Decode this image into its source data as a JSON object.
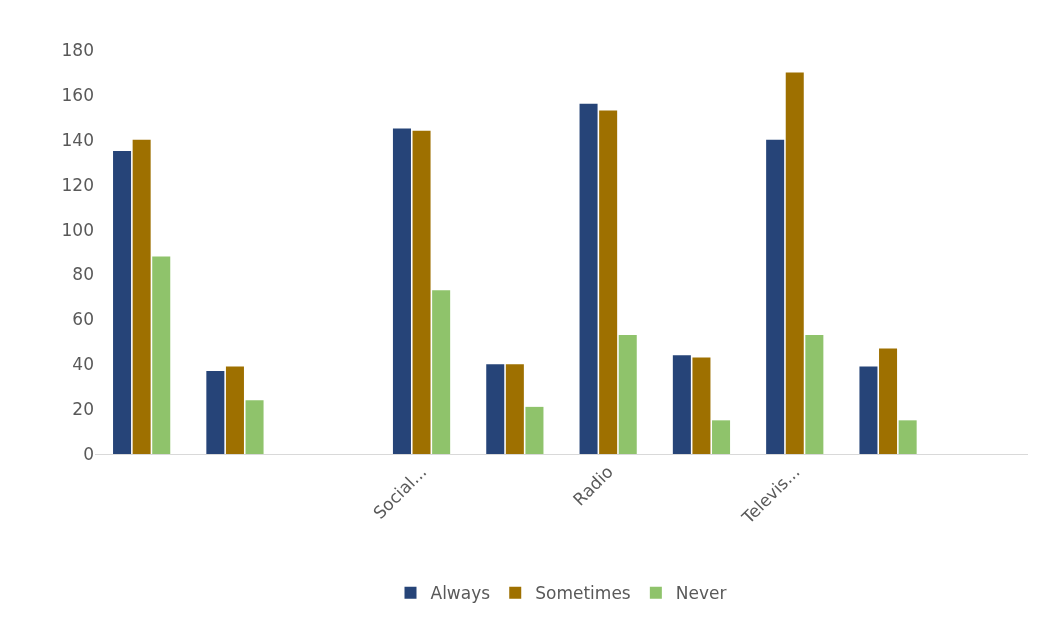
{
  "chart_data": {
    "type": "bar",
    "categories": [
      null,
      null,
      null,
      "Social...",
      null,
      "Radio",
      null,
      "Televis...",
      null,
      null
    ],
    "series": [
      {
        "name": "Always",
        "color": "#264478",
        "values": [
          135,
          37,
          null,
          145,
          40,
          156,
          44,
          140,
          39,
          null
        ]
      },
      {
        "name": "Sometimes",
        "color": "#9e7000",
        "values": [
          140,
          39,
          null,
          144,
          40,
          153,
          43,
          170,
          47,
          null
        ]
      },
      {
        "name": "Never",
        "color": "#8fc36b",
        "values": [
          88,
          24,
          null,
          73,
          21,
          53,
          15,
          53,
          15,
          null
        ]
      }
    ],
    "ylim": [
      0,
      180
    ],
    "yticks": [
      0,
      20,
      40,
      60,
      80,
      100,
      120,
      140,
      160,
      180
    ],
    "grid": false,
    "legend": "bottom"
  }
}
